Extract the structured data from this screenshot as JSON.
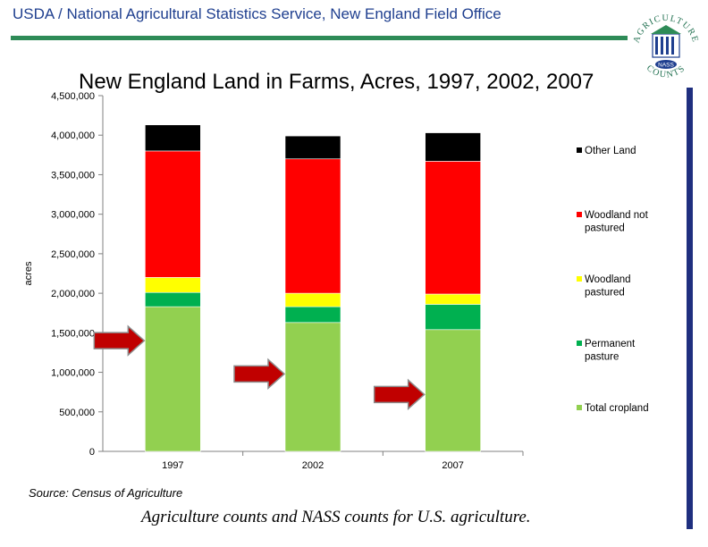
{
  "header": {
    "text": "USDA / National Agricultural Statistics Service, New England Field Office"
  },
  "logo": {
    "top_text": "AGRICULTURE",
    "center_text": "NASS",
    "bottom_text": "COUNTS",
    "colors": {
      "primary": "#1f6f4f",
      "accent": "#1f3f8f"
    }
  },
  "footer": {
    "source": "Source: Census of Agriculture",
    "tagline": "Agriculture counts and NASS counts for U.S. agriculture."
  },
  "colors": {
    "header_text": "#1f3f8f",
    "rule": "#2e8b57",
    "side_bar": "#1f2f7f",
    "arrow": "#c00000"
  },
  "chart_data": {
    "type": "bar",
    "stacked": true,
    "title": "New England Land in Farms, Acres, 1997, 2002, 2007",
    "xlabel": "",
    "ylabel": "acres",
    "categories": [
      "1997",
      "2002",
      "2007"
    ],
    "ylim": [
      0,
      4500000
    ],
    "yticks": [
      0,
      500000,
      1000000,
      1500000,
      2000000,
      2500000,
      3000000,
      3500000,
      4000000,
      4500000
    ],
    "ytick_labels": [
      "0",
      "500,000",
      "1,000,000",
      "1,500,000",
      "2,000,000",
      "2,500,000",
      "3,000,000",
      "3,500,000",
      "4,000,000",
      "4,500,000"
    ],
    "series": [
      {
        "name": "Total cropland",
        "color": "#92d050",
        "values": [
          1830000,
          1630000,
          1540000
        ]
      },
      {
        "name": "Permanent pasture",
        "color": "#00b050",
        "values": [
          180000,
          200000,
          320000
        ]
      },
      {
        "name": "Woodland pastured",
        "color": "#ffff00",
        "values": [
          190000,
          170000,
          130000
        ]
      },
      {
        "name": "Woodland not pastured",
        "color": "#ff0000",
        "values": [
          1600000,
          1700000,
          1680000
        ]
      },
      {
        "name": "Other Land",
        "color": "#000000",
        "values": [
          330000,
          290000,
          360000
        ]
      }
    ],
    "legend": {
      "position": "right",
      "order": [
        "Other Land",
        "Woodland not pastured",
        "Woodland pastured",
        "Permanent pasture",
        "Total cropland"
      ]
    },
    "annotations": [
      {
        "type": "arrow",
        "color": "#c00000",
        "target": "1997",
        "y": 1400000
      },
      {
        "type": "arrow",
        "color": "#c00000",
        "target": "2002",
        "y": 980000
      },
      {
        "type": "arrow",
        "color": "#c00000",
        "target": "2007",
        "y": 720000
      }
    ]
  }
}
